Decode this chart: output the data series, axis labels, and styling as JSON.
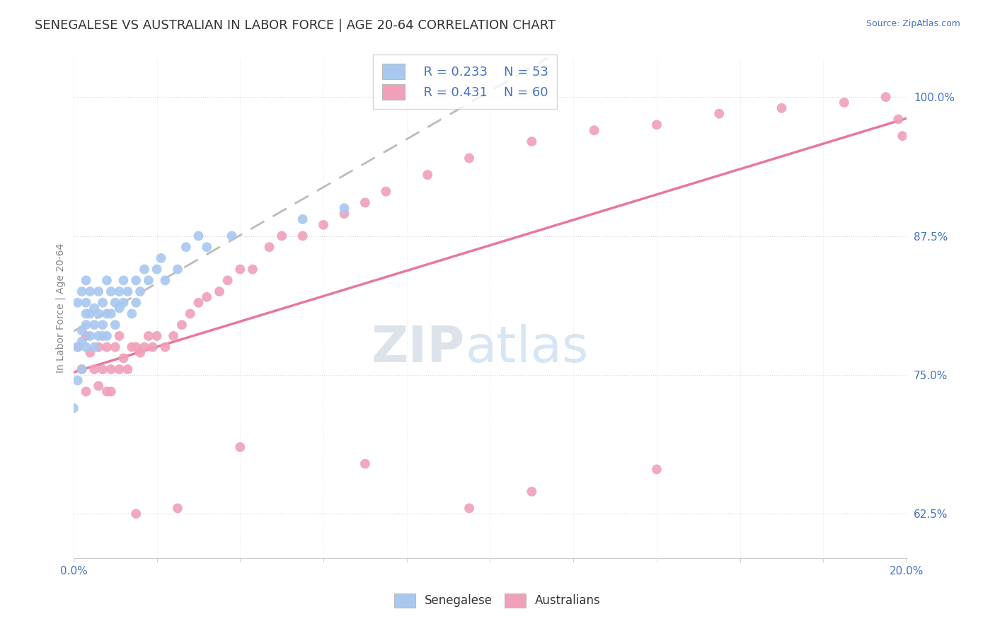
{
  "title": "SENEGALESE VS AUSTRALIAN IN LABOR FORCE | AGE 20-64 CORRELATION CHART",
  "source_text": "Source: ZipAtlas.com",
  "ylabel": "In Labor Force | Age 20-64",
  "xlim": [
    0.0,
    0.2
  ],
  "ylim": [
    0.585,
    1.035
  ],
  "yticks": [
    0.625,
    0.75,
    0.875,
    1.0
  ],
  "ytick_labels": [
    "62.5%",
    "75.0%",
    "87.5%",
    "100.0%"
  ],
  "xtick_labels": [
    "0.0%",
    "20.0%"
  ],
  "xticks": [
    0.0,
    0.2
  ],
  "legend_r1": "R = 0.233",
  "legend_n1": "N = 53",
  "legend_r2": "R = 0.431",
  "legend_n2": "N = 60",
  "color_blue": "#A8C8F0",
  "color_pink": "#F0A0B8",
  "color_trendline_blue": "#A8C8F0",
  "color_trendline_pink": "#E87898",
  "color_text_blue": "#4472C4",
  "title_fontsize": 13,
  "label_fontsize": 10,
  "tick_fontsize": 11,
  "senegalese_x": [
    0.0,
    0.001,
    0.001,
    0.001,
    0.002,
    0.002,
    0.002,
    0.002,
    0.003,
    0.003,
    0.003,
    0.003,
    0.003,
    0.004,
    0.004,
    0.004,
    0.005,
    0.005,
    0.005,
    0.006,
    0.006,
    0.006,
    0.007,
    0.007,
    0.007,
    0.008,
    0.008,
    0.008,
    0.009,
    0.009,
    0.01,
    0.01,
    0.011,
    0.011,
    0.012,
    0.012,
    0.013,
    0.014,
    0.015,
    0.015,
    0.016,
    0.017,
    0.018,
    0.02,
    0.021,
    0.022,
    0.025,
    0.027,
    0.03,
    0.032,
    0.038,
    0.055,
    0.065
  ],
  "senegalese_y": [
    0.72,
    0.815,
    0.775,
    0.745,
    0.79,
    0.825,
    0.78,
    0.755,
    0.805,
    0.815,
    0.835,
    0.775,
    0.795,
    0.825,
    0.805,
    0.785,
    0.795,
    0.775,
    0.81,
    0.805,
    0.825,
    0.785,
    0.815,
    0.795,
    0.785,
    0.785,
    0.805,
    0.835,
    0.825,
    0.805,
    0.815,
    0.795,
    0.825,
    0.81,
    0.835,
    0.815,
    0.825,
    0.805,
    0.815,
    0.835,
    0.825,
    0.845,
    0.835,
    0.845,
    0.855,
    0.835,
    0.845,
    0.865,
    0.875,
    0.865,
    0.875,
    0.89,
    0.9
  ],
  "australians_x": [
    0.001,
    0.002,
    0.003,
    0.003,
    0.004,
    0.005,
    0.006,
    0.006,
    0.007,
    0.008,
    0.008,
    0.009,
    0.009,
    0.01,
    0.011,
    0.011,
    0.012,
    0.013,
    0.014,
    0.015,
    0.016,
    0.017,
    0.018,
    0.019,
    0.02,
    0.022,
    0.024,
    0.026,
    0.028,
    0.03,
    0.032,
    0.035,
    0.037,
    0.04,
    0.043,
    0.047,
    0.05,
    0.055,
    0.06,
    0.065,
    0.07,
    0.075,
    0.085,
    0.095,
    0.11,
    0.125,
    0.14,
    0.155,
    0.17,
    0.185,
    0.195,
    0.198,
    0.199,
    0.14,
    0.095,
    0.11,
    0.07,
    0.04,
    0.025,
    0.015
  ],
  "australians_y": [
    0.775,
    0.755,
    0.785,
    0.735,
    0.77,
    0.755,
    0.74,
    0.775,
    0.755,
    0.775,
    0.735,
    0.755,
    0.735,
    0.775,
    0.755,
    0.785,
    0.765,
    0.755,
    0.775,
    0.775,
    0.77,
    0.775,
    0.785,
    0.775,
    0.785,
    0.775,
    0.785,
    0.795,
    0.805,
    0.815,
    0.82,
    0.825,
    0.835,
    0.845,
    0.845,
    0.865,
    0.875,
    0.875,
    0.885,
    0.895,
    0.905,
    0.915,
    0.93,
    0.945,
    0.96,
    0.97,
    0.975,
    0.985,
    0.99,
    0.995,
    1.0,
    0.98,
    0.965,
    0.665,
    0.63,
    0.645,
    0.67,
    0.685,
    0.63,
    0.625
  ]
}
